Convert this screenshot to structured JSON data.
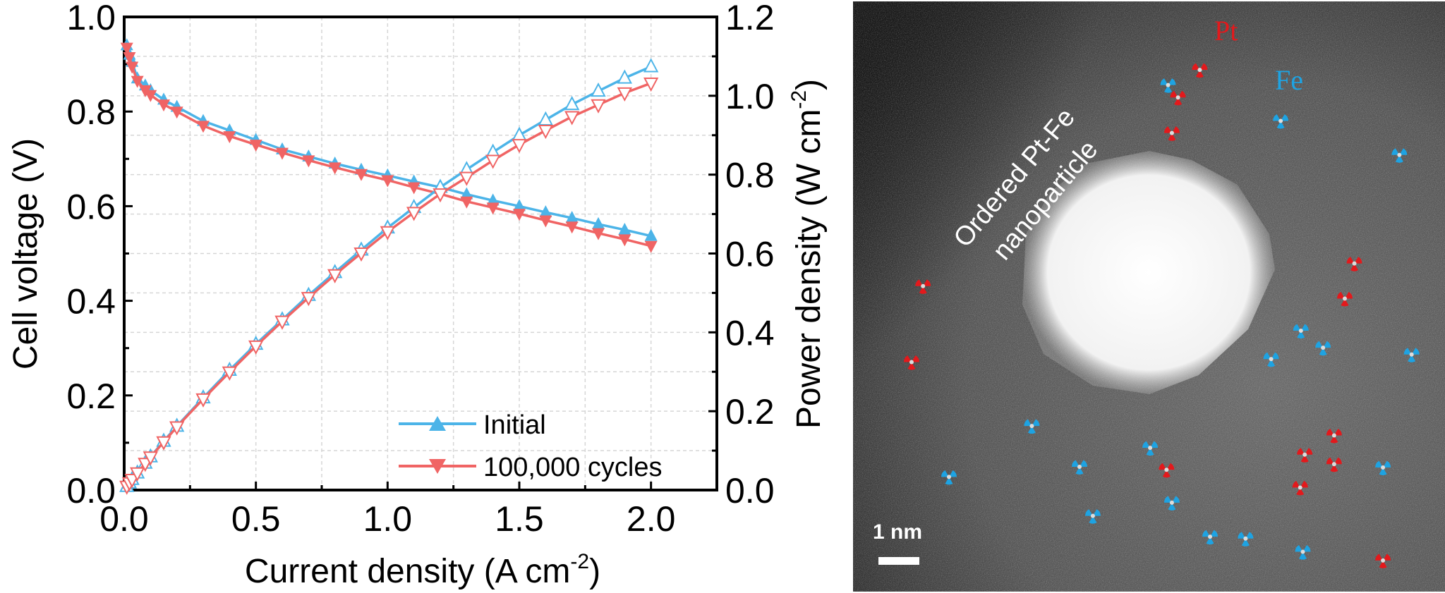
{
  "chart_data": {
    "type": "line",
    "xlabel": "Current density (A cm",
    "xlabel_sup": "-2",
    "xlabel_end": ")",
    "ylabel": "Cell voltage (V)",
    "y2label": "Power density (W cm",
    "y2label_sup": "-2",
    "y2label_end": ")",
    "xlim": [
      0,
      2.25
    ],
    "ylim": [
      0,
      1.0
    ],
    "y2lim": [
      0,
      1.2
    ],
    "xticks": [
      "0.0",
      "0.5",
      "1.0",
      "1.5",
      "2.0"
    ],
    "yticks": [
      "0.0",
      "0.2",
      "0.4",
      "0.6",
      "0.8",
      "1.0"
    ],
    "y2ticks": [
      "0.0",
      "0.2",
      "0.4",
      "0.6",
      "0.8",
      "1.0",
      "1.2"
    ],
    "grid": true,
    "legend_position": "bottom-right",
    "x": [
      0.01,
      0.02,
      0.03,
      0.05,
      0.08,
      0.1,
      0.15,
      0.2,
      0.3,
      0.4,
      0.5,
      0.6,
      0.7,
      0.8,
      0.9,
      1.0,
      1.1,
      1.2,
      1.3,
      1.4,
      1.5,
      1.6,
      1.7,
      1.8,
      1.9,
      2.0
    ],
    "series": [
      {
        "name": "Initial",
        "axis": "left",
        "quantity": "voltage",
        "color": "#4cb4e8",
        "marker": "triangle-up-filled",
        "values": [
          0.94,
          0.92,
          0.905,
          0.87,
          0.855,
          0.845,
          0.825,
          0.81,
          0.78,
          0.76,
          0.74,
          0.72,
          0.705,
          0.69,
          0.677,
          0.665,
          0.652,
          0.64,
          0.625,
          0.612,
          0.6,
          0.587,
          0.575,
          0.562,
          0.55,
          0.537
        ]
      },
      {
        "name": "100,000 cycles",
        "axis": "left",
        "quantity": "voltage",
        "color": "#f06464",
        "marker": "triangle-down-filled",
        "values": [
          0.935,
          0.915,
          0.895,
          0.865,
          0.845,
          0.835,
          0.815,
          0.8,
          0.77,
          0.748,
          0.73,
          0.713,
          0.697,
          0.682,
          0.668,
          0.655,
          0.64,
          0.626,
          0.61,
          0.597,
          0.584,
          0.57,
          0.557,
          0.543,
          0.53,
          0.516
        ]
      },
      {
        "name": "Initial",
        "axis": "right",
        "quantity": "power",
        "color": "#4cb4e8",
        "marker": "triangle-up-open",
        "values": [
          0.0094,
          0.0184,
          0.0272,
          0.0435,
          0.0684,
          0.0845,
          0.124,
          0.162,
          0.234,
          0.304,
          0.37,
          0.432,
          0.494,
          0.552,
          0.609,
          0.665,
          0.717,
          0.768,
          0.813,
          0.857,
          0.9,
          0.939,
          0.978,
          1.012,
          1.045,
          1.074
        ]
      },
      {
        "name": "100,000 cycles",
        "axis": "right",
        "quantity": "power",
        "color": "#f06464",
        "marker": "triangle-down-open",
        "values": [
          0.0094,
          0.0183,
          0.0269,
          0.0433,
          0.0676,
          0.0835,
          0.122,
          0.16,
          0.231,
          0.299,
          0.365,
          0.428,
          0.488,
          0.546,
          0.601,
          0.655,
          0.704,
          0.751,
          0.793,
          0.836,
          0.876,
          0.912,
          0.947,
          0.977,
          1.007,
          1.032
        ]
      }
    ],
    "legend": [
      "Initial",
      "100,000 cycles"
    ]
  },
  "micrograph": {
    "particle_label_line1": "Ordered Pt-Fe",
    "particle_label_line2": "nanoparticle",
    "pt_label": "Pt",
    "fe_label": "Fe",
    "pt_color": "#e3191c",
    "fe_color": "#1ea3e2",
    "scale_bar_label": "1 nm"
  }
}
